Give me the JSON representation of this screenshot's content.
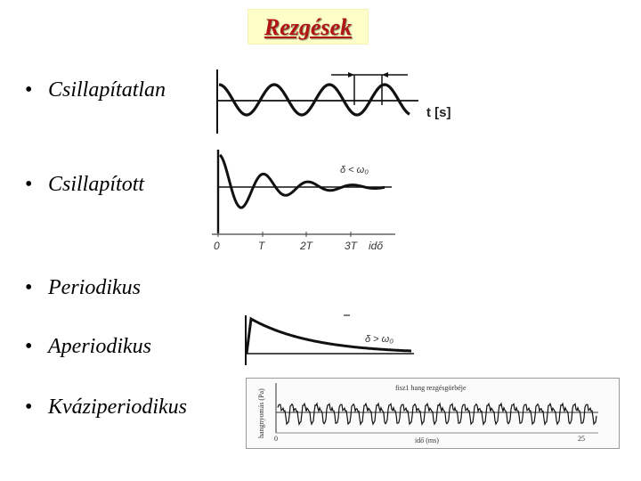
{
  "title": "Rezgések",
  "bullets": [
    {
      "label": "Csillapítatlan"
    },
    {
      "label": "Csillapított"
    },
    {
      "label": "Periodikus"
    },
    {
      "label": "Aperiodikus"
    },
    {
      "label": "Kváziperiodikus"
    }
  ],
  "diagrams": {
    "undamped": {
      "axis_label": "t [s]"
    },
    "damped": {
      "condition": "δ < ω₀",
      "ticks": [
        "0",
        "T",
        "2T",
        "3T",
        "idő"
      ]
    },
    "aperiodic": {
      "condition": "δ > ω₀"
    },
    "quasi": {
      "title": "fisz1 hang rezgésgörbéje",
      "ylabel": "hangnyomás (Pa)",
      "xlabel": "idő (ms)",
      "x_start": "0",
      "x_end": "25"
    }
  }
}
